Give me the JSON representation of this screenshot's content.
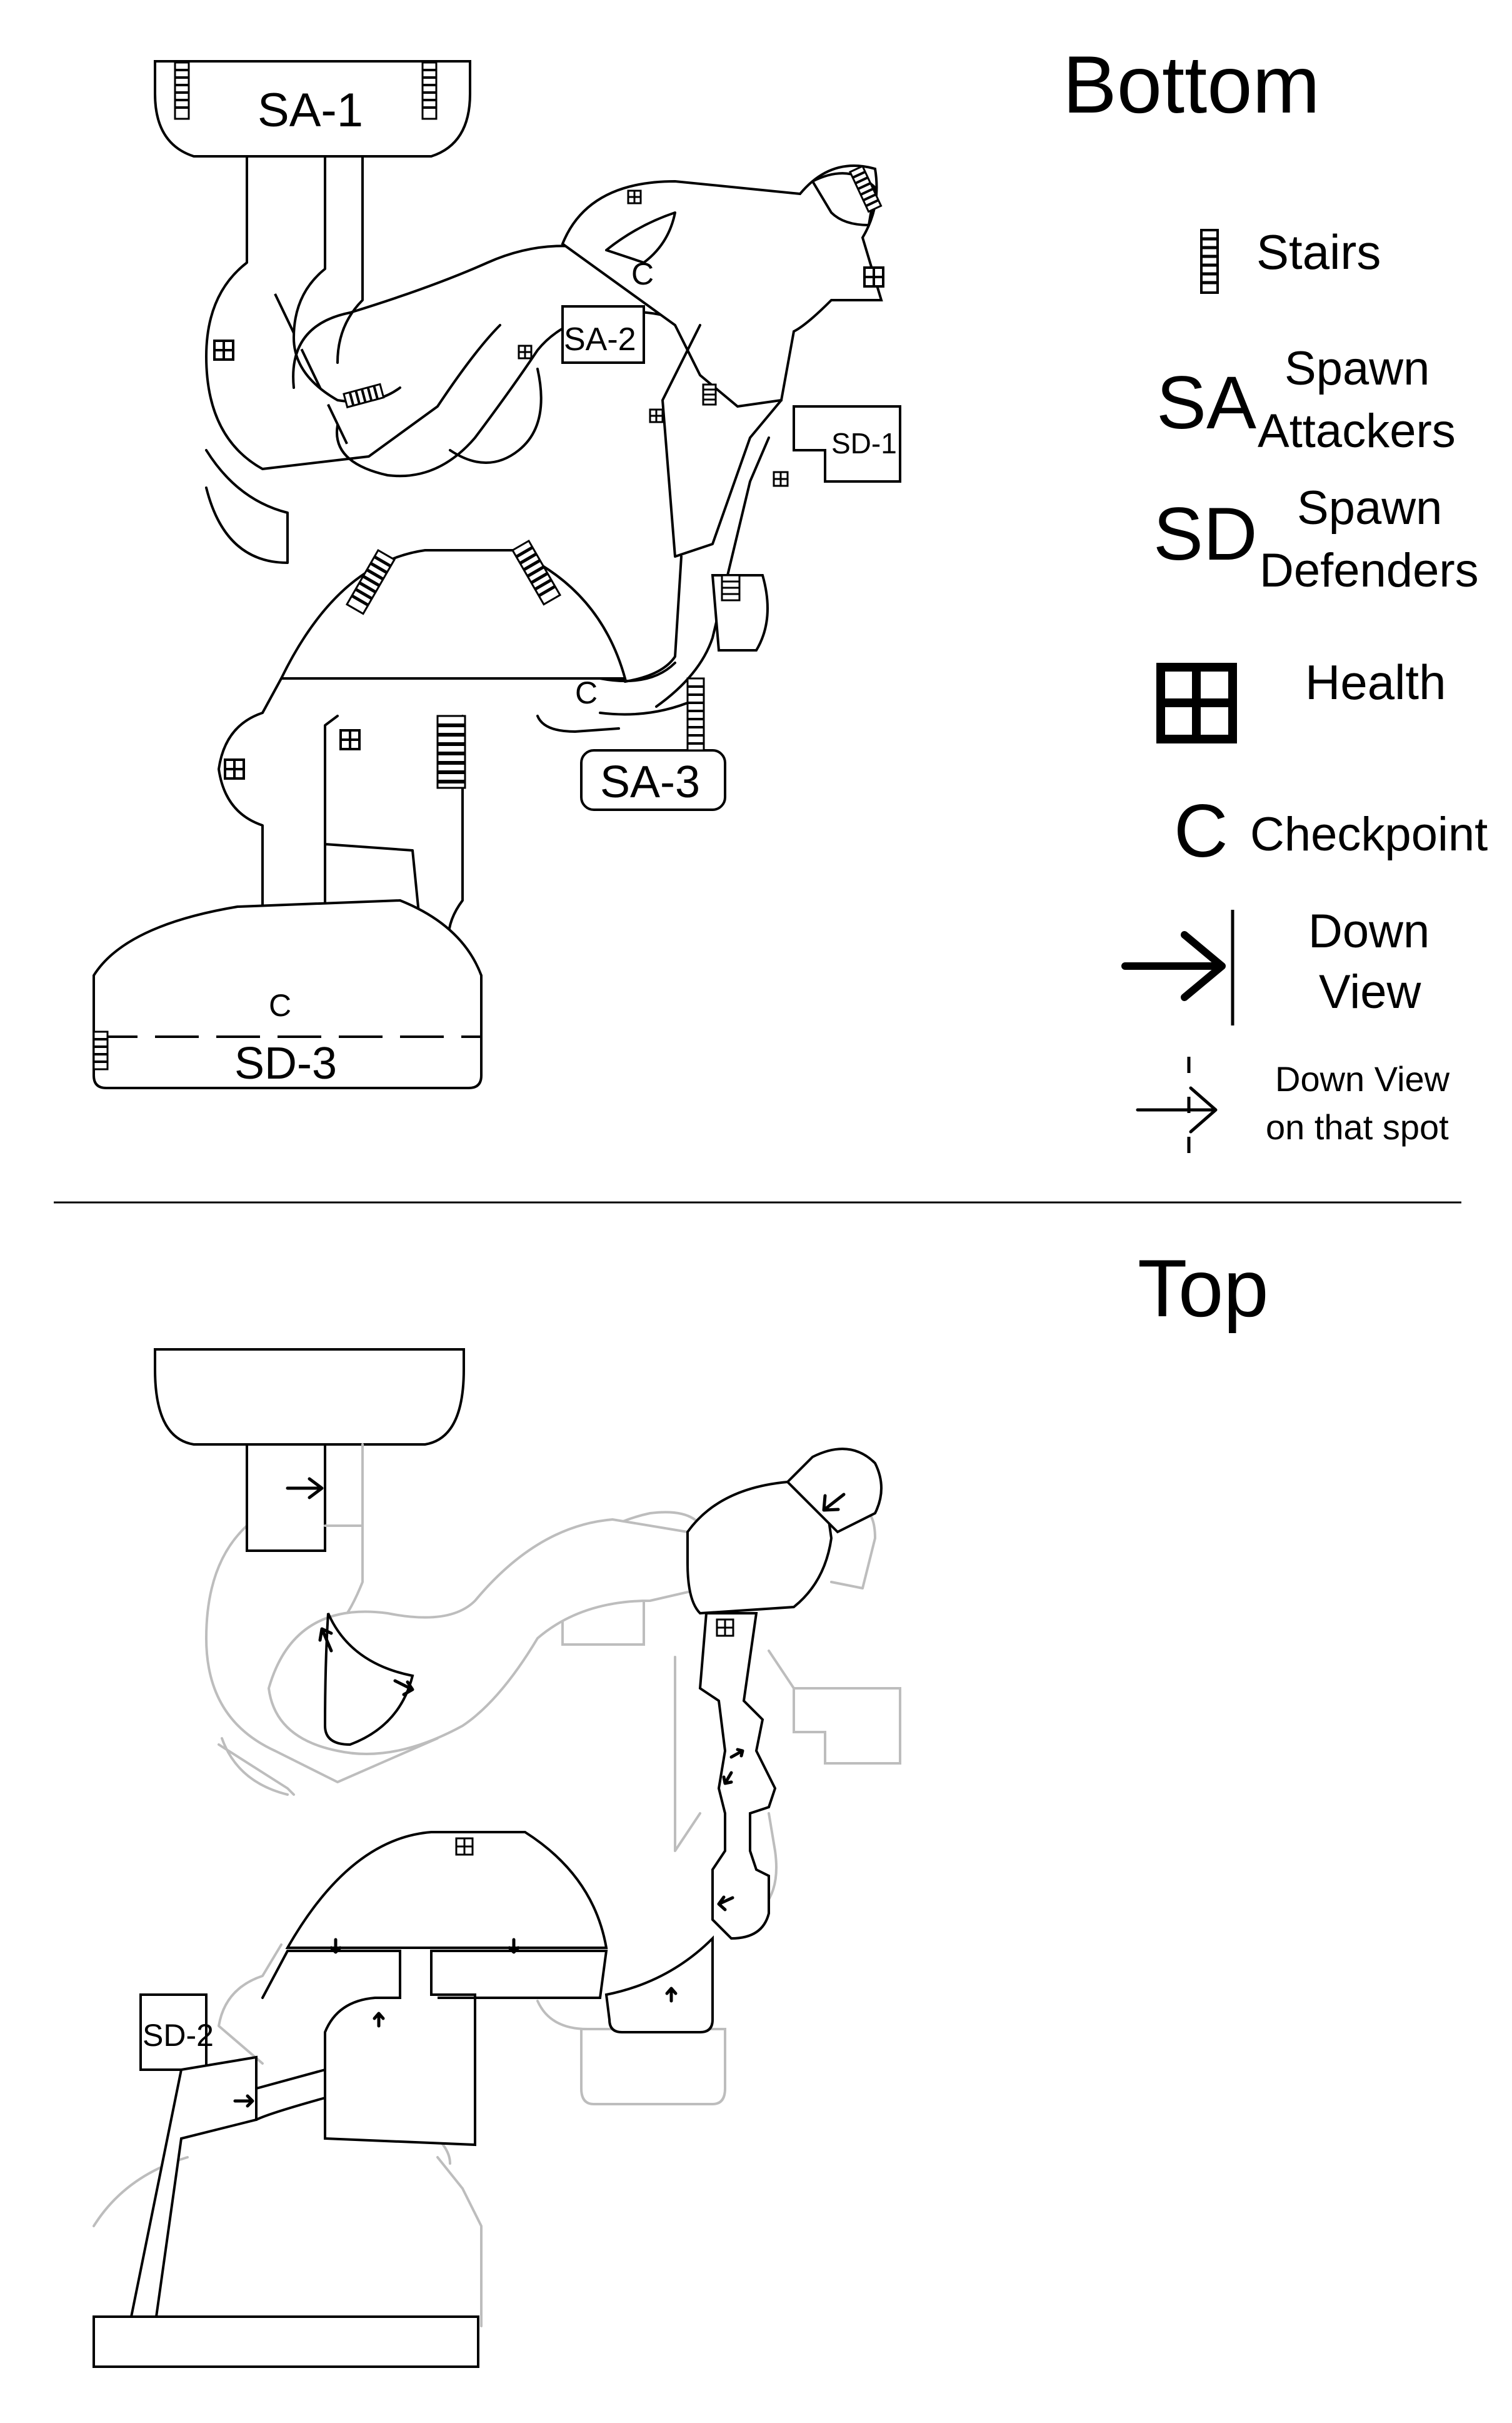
{
  "sections": {
    "bottom_title": "Bottom",
    "top_title": "Top"
  },
  "legend": {
    "stairs_label": "Stairs",
    "sa_abbr": "SA",
    "sa_line1": "Spawn",
    "sa_line2": "Attackers",
    "sd_abbr": "SD",
    "sd_line1": "Spawn",
    "sd_line2": "Defenders",
    "health_label": "Health",
    "checkpoint_abbr": "C",
    "checkpoint_label": "Checkpoint",
    "down_view_line1": "Down",
    "down_view_line2": "View",
    "down_spot_line1": "Down View",
    "down_spot_line2": "on that spot"
  },
  "bottom_map": {
    "spawns": [
      "SA-1",
      "SA-2",
      "SD-1",
      "SA-3",
      "SD-3"
    ],
    "checkpoint_marker": "C"
  },
  "top_map": {
    "spawns": [
      "SD-2"
    ]
  },
  "colors": {
    "line": "#000000",
    "faded_outline": "#bdbdbd",
    "background": "#ffffff"
  }
}
